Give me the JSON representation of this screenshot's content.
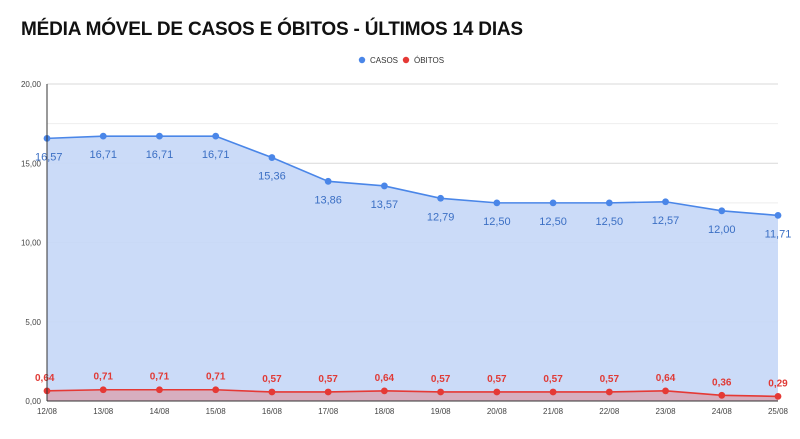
{
  "title": "MÉDIA MÓVEL DE CASOS E ÓBITOS - ÚLTIMOS 14 DIAS",
  "chart_data": {
    "type": "area",
    "categories": [
      "12/08",
      "13/08",
      "14/08",
      "15/08",
      "16/08",
      "17/08",
      "18/08",
      "19/08",
      "20/08",
      "21/08",
      "22/08",
      "23/08",
      "24/08",
      "25/08"
    ],
    "series": [
      {
        "name": "CASOS",
        "color": "#4a86e8",
        "fill": "#c8d9f8",
        "values": [
          16.57,
          16.71,
          16.71,
          16.71,
          15.36,
          13.86,
          13.57,
          12.79,
          12.5,
          12.5,
          12.5,
          12.57,
          12.0,
          11.71
        ],
        "labels": [
          "16,57",
          "16,71",
          "16,71",
          "16,71",
          "15,36",
          "13,86",
          "13,57",
          "12,79",
          "12,50",
          "12,50",
          "12,50",
          "12,57",
          "12,00",
          "11,71"
        ]
      },
      {
        "name": "ÓBITOS",
        "color": "#e53935",
        "fill": "#d8a8b8",
        "values": [
          0.64,
          0.71,
          0.71,
          0.71,
          0.57,
          0.57,
          0.64,
          0.57,
          0.57,
          0.57,
          0.57,
          0.64,
          0.36,
          0.29
        ],
        "labels": [
          "0,64",
          "0,71",
          "0,71",
          "0,71",
          "0,57",
          "0,57",
          "0,64",
          "0,57",
          "0,57",
          "0,57",
          "0,57",
          "0,64",
          "0,36",
          "0,29"
        ]
      }
    ],
    "ylim": [
      0,
      20
    ],
    "yticks": [
      0,
      5,
      10,
      15,
      20
    ],
    "ytick_labels": [
      "0,00",
      "5,00",
      "10,00",
      "15,00",
      "20,00"
    ],
    "grid": true,
    "legend": "top-center",
    "xlabel": "",
    "ylabel": ""
  }
}
